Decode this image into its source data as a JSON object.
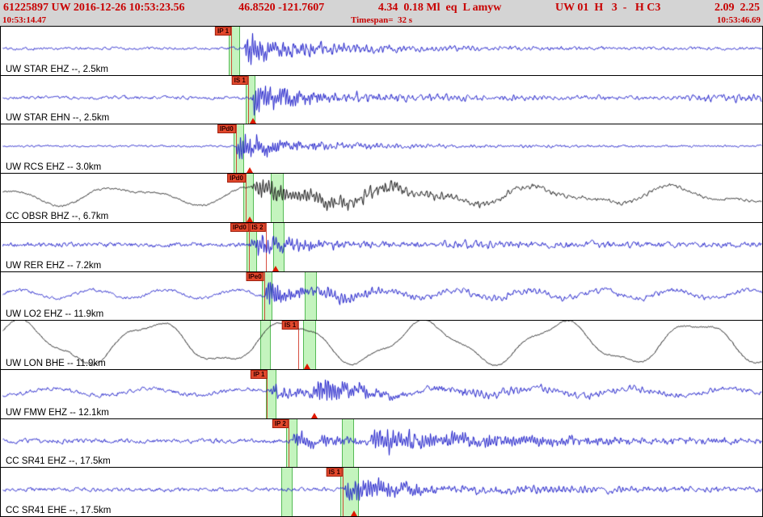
{
  "header": {
    "segments": [
      "61225897 UW 2016-12-26 10:53:23.56",
      "46.8520 -121.7607",
      "4.34  0.18 Ml  eq  L amyw",
      "UW 01  H   3  -   H C3",
      "2.09  2.25"
    ]
  },
  "timebar": {
    "start": "10:53:14.47",
    "timespan": "Timespan=  32 s",
    "end": "10:53:46.69"
  },
  "colors": {
    "header_text": "#c80000",
    "band_fill": "#b0f0a8",
    "pick_flag": "#e2482c",
    "trace_blue": "#1a1ac8",
    "trace_black": "#141414"
  },
  "traces": [
    {
      "label": "UW STAR EHZ --, 2.5km",
      "color": "#1a1ac8",
      "picks": [
        {
          "label": "IP 1",
          "frac": 0.302
        }
      ],
      "bands": [
        {
          "start": 0.299,
          "end": 0.314
        }
      ],
      "triangles": [],
      "wave": {
        "seed": 101,
        "noise": 2.0,
        "bursts": [
          {
            "at": 0.317,
            "amp": 23,
            "rise": 5,
            "decay": 55,
            "freq": 2.0
          },
          {
            "at": 0.36,
            "amp": 7,
            "rise": 20,
            "decay": 180,
            "freq": 1.1
          }
        ]
      }
    },
    {
      "label": "UW STAR EHN --, 2.5km",
      "color": "#1a1ac8",
      "picks": [
        {
          "label": "IS 1",
          "frac": 0.324
        }
      ],
      "bands": [
        {
          "start": 0.321,
          "end": 0.334
        }
      ],
      "triangles": [
        0.33
      ],
      "wave": {
        "seed": 202,
        "noise": 2.3,
        "bursts": [
          {
            "at": 0.327,
            "amp": 22,
            "rise": 4,
            "decay": 60,
            "freq": 2.1
          },
          {
            "at": 0.4,
            "amp": 6,
            "rise": 30,
            "decay": 220,
            "freq": 1.2
          },
          {
            "at": 0.88,
            "amp": 4,
            "rise": 40,
            "decay": 300,
            "freq": 1.0
          }
        ]
      }
    },
    {
      "label": "UW RCS EHZ -- 3.0km",
      "color": "#1a1ac8",
      "picks": [
        {
          "label": "IPd0",
          "frac": 0.308
        }
      ],
      "bands": [
        {
          "start": 0.305,
          "end": 0.319
        }
      ],
      "triangles": [
        0.326
      ],
      "wave": {
        "seed": 303,
        "noise": 1.3,
        "bursts": [
          {
            "at": 0.308,
            "amp": 21,
            "rise": 3,
            "decay": 50,
            "freq": 2.2
          },
          {
            "at": 0.37,
            "amp": 4,
            "rise": 40,
            "decay": 200,
            "freq": 1.3
          }
        ]
      }
    },
    {
      "label": "CC OBSR BHZ --, 6.7km",
      "color": "#141414",
      "picks": [
        {
          "label": "IPd0",
          "frac": 0.321
        }
      ],
      "bands": [
        {
          "start": 0.318,
          "end": 0.332
        },
        {
          "start": 0.354,
          "end": 0.371
        }
      ],
      "triangles": [
        0.326
      ],
      "wave": {
        "seed": 404,
        "noise": 1.2,
        "sin_amp": 9,
        "sin_period": 170,
        "sin_phase": 2.2,
        "sin2_amp": 4,
        "sin2_period": 88,
        "bursts": [
          {
            "at": 0.327,
            "amp": 15,
            "rise": 8,
            "decay": 130,
            "freq": 1.7
          },
          {
            "at": 0.41,
            "amp": 6,
            "rise": 40,
            "decay": 260,
            "freq": 1.0
          }
        ]
      }
    },
    {
      "label": "UW RER EHZ -- 7.2km",
      "color": "#1a1ac8",
      "picks": [
        {
          "label": "IPd0",
          "frac": 0.325
        },
        {
          "label": "IS 2",
          "frac": 0.347
        }
      ],
      "bands": [
        {
          "start": 0.322,
          "end": 0.336
        },
        {
          "start": 0.357,
          "end": 0.372
        }
      ],
      "triangles": [
        0.36
      ],
      "wave": {
        "seed": 505,
        "noise": 3.2,
        "bursts": [
          {
            "at": 0.326,
            "amp": 15,
            "rise": 4,
            "decay": 70,
            "freq": 1.9
          },
          {
            "at": 0.55,
            "amp": 4,
            "rise": 60,
            "decay": 250,
            "freq": 1.0
          }
        ]
      }
    },
    {
      "label": "UW LO2 EHZ -- 11.9km",
      "color": "#1a1ac8",
      "picks": [
        {
          "label": "IPe0",
          "frac": 0.345
        }
      ],
      "bands": [
        {
          "start": 0.342,
          "end": 0.356
        },
        {
          "start": 0.398,
          "end": 0.414
        }
      ],
      "triangles": [],
      "wave": {
        "seed": 606,
        "noise": 2.2,
        "sin_amp": 5,
        "sin_period": 90,
        "bursts": [
          {
            "at": 0.346,
            "amp": 26,
            "rise": 3,
            "decay": 28,
            "freq": 2.2
          },
          {
            "at": 0.4,
            "amp": 9,
            "rise": 20,
            "decay": 90,
            "freq": 1.5
          },
          {
            "at": 0.55,
            "amp": 4,
            "rise": 80,
            "decay": 300,
            "freq": 1.0
          }
        ]
      }
    },
    {
      "label": "UW LON BHE -- 11.9km",
      "color": "#141414",
      "picks": [
        {
          "label": "IS 1",
          "frac": 0.39
        }
      ],
      "bands": [
        {
          "start": 0.34,
          "end": 0.354
        },
        {
          "start": 0.396,
          "end": 0.413
        }
      ],
      "triangles": [
        0.402
      ],
      "wave": {
        "seed": 707,
        "noise": 1.0,
        "sin_amp": 24,
        "sin_period": 168,
        "sin_phase": 0.8,
        "sin2_amp": 5,
        "sin2_period": 62,
        "bursts": []
      }
    },
    {
      "label": "UW FMW EHZ -- 12.1km",
      "color": "#1a1ac8",
      "picks": [
        {
          "label": "IP 1",
          "frac": 0.349
        }
      ],
      "bands": [
        {
          "start": 0.347,
          "end": 0.361
        }
      ],
      "triangles": [
        0.411
      ],
      "wave": {
        "seed": 808,
        "noise": 2.8,
        "sin_amp": 4,
        "sin_period": 120,
        "bursts": [
          {
            "at": 0.352,
            "amp": 9,
            "rise": 5,
            "decay": 60,
            "freq": 1.9
          },
          {
            "at": 0.408,
            "amp": 20,
            "rise": 4,
            "decay": 55,
            "freq": 2.1
          },
          {
            "at": 0.55,
            "amp": 5,
            "rise": 60,
            "decay": 250,
            "freq": 1.2
          }
        ]
      }
    },
    {
      "label": "CC SR41 EHZ --, 17.5km",
      "color": "#1a1ac8",
      "picks": [
        {
          "label": "IP 2",
          "frac": 0.377
        }
      ],
      "bands": [
        {
          "start": 0.374,
          "end": 0.389
        },
        {
          "start": 0.447,
          "end": 0.463
        }
      ],
      "triangles": [],
      "wave": {
        "seed": 909,
        "noise": 3.2,
        "bursts": [
          {
            "at": 0.38,
            "amp": 11,
            "rise": 5,
            "decay": 60,
            "freq": 2.0
          },
          {
            "at": 0.478,
            "amp": 15,
            "rise": 10,
            "decay": 200,
            "freq": 1.9
          }
        ]
      }
    },
    {
      "label": "CC SR41 EHE --, 17.5km",
      "color": "#1a1ac8",
      "picks": [
        {
          "label": "IS 1",
          "frac": 0.448
        }
      ],
      "bands": [
        {
          "start": 0.368,
          "end": 0.382
        },
        {
          "start": 0.445,
          "end": 0.469
        }
      ],
      "triangles": [
        0.463
      ],
      "wave": {
        "seed": 1010,
        "noise": 2.6,
        "bursts": [
          {
            "at": 0.45,
            "amp": 21,
            "rise": 5,
            "decay": 70,
            "freq": 2.0
          },
          {
            "at": 0.58,
            "amp": 5,
            "rise": 80,
            "decay": 300,
            "freq": 1.2
          }
        ]
      }
    }
  ]
}
